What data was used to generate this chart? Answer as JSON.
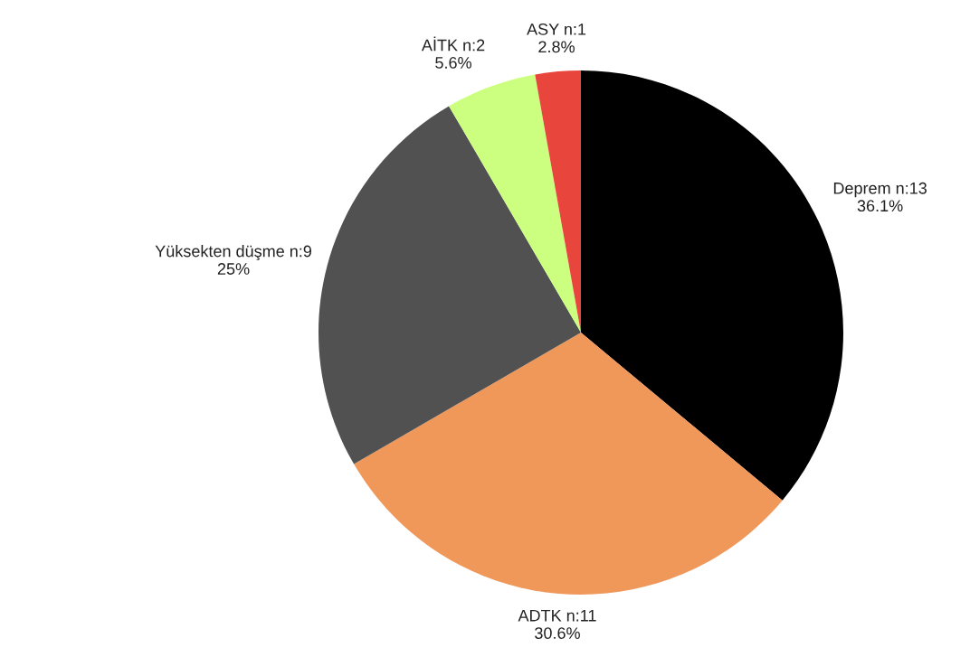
{
  "chart_data": {
    "type": "pie",
    "categories": [
      "Deprem n:13",
      "ADTK n:11",
      "Yüksekten düşme n:9",
      "AİTK n:2",
      "ASY n:1"
    ],
    "values": [
      36.1,
      30.6,
      25,
      5.6,
      2.8
    ],
    "value_labels": [
      "36.1%",
      "30.6%",
      "25%",
      "5.6%",
      "2.8%"
    ],
    "colors": [
      "#000000",
      "#f0975a",
      "#515151",
      "#ccff80",
      "#e8453c"
    ],
    "legend": false
  }
}
